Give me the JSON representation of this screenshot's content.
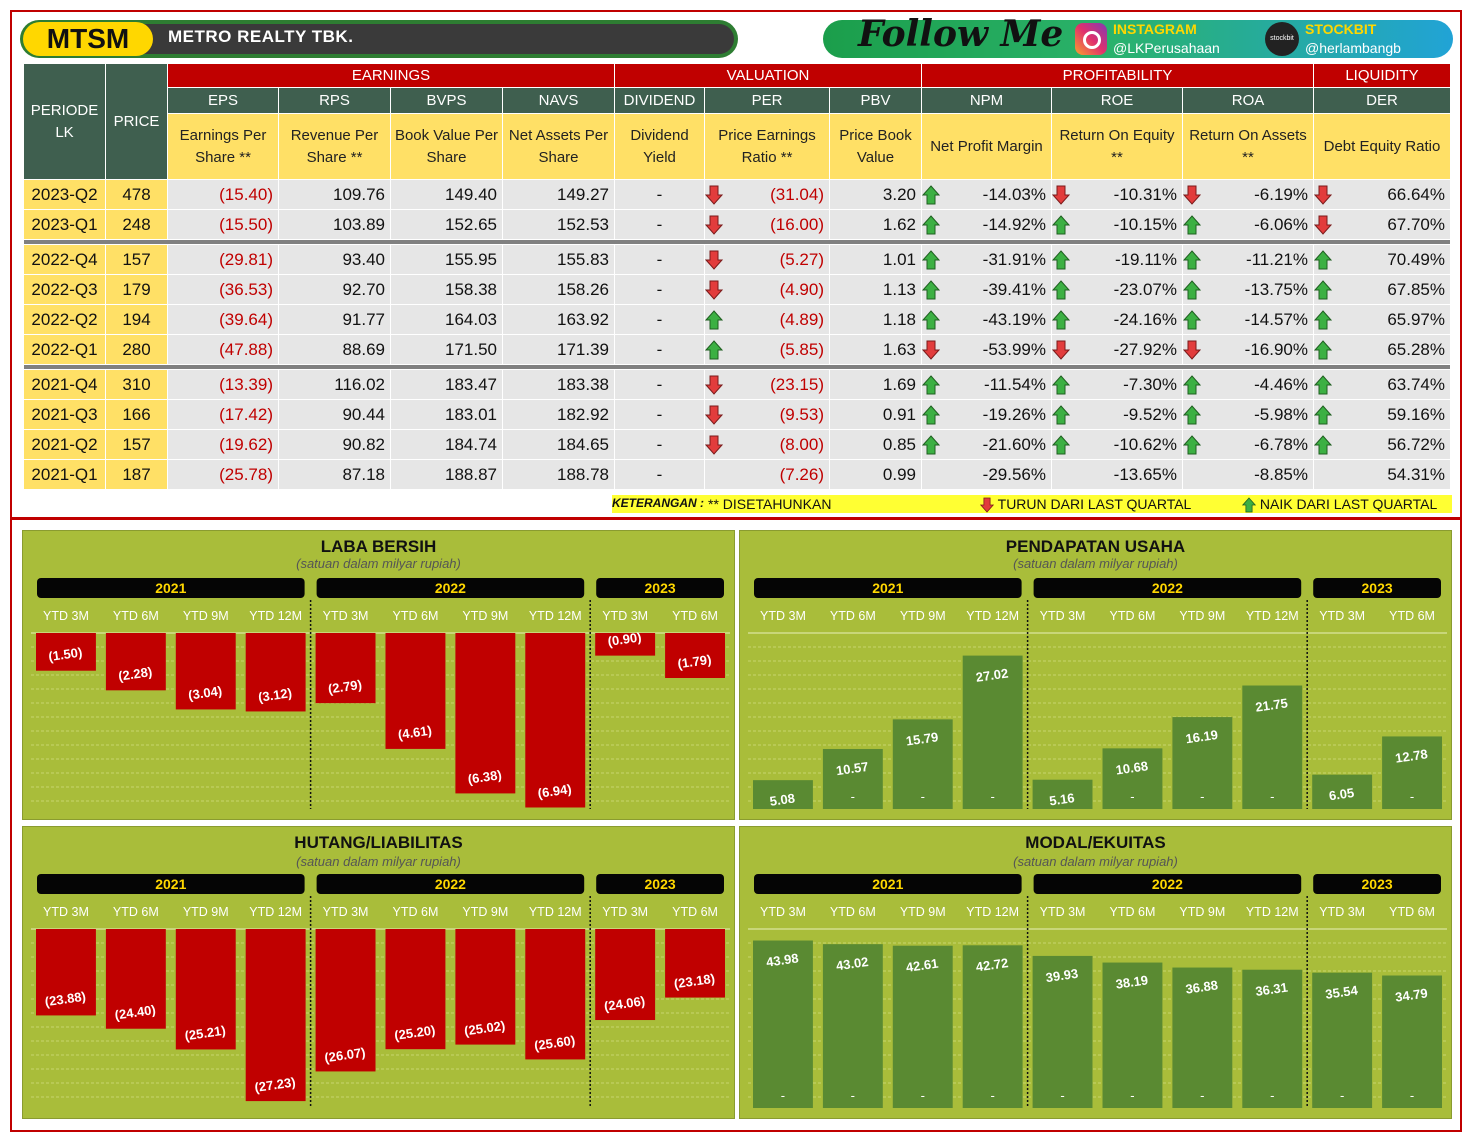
{
  "header": {
    "ticker": "MTSM",
    "company": "METRO  REALTY TBK.",
    "follow": "Follow Me",
    "instagram_label": "INSTAGRAM",
    "instagram_handle": "@LKPerusahaan",
    "stockbit_label": "STOCKBIT",
    "stockbit_handle": "@herlambangb",
    "stockbit_icon": "stockbit"
  },
  "table": {
    "periode_label": "PERIODE LK",
    "price_label": "PRICE",
    "groups": [
      "EARNINGS",
      "VALUATION",
      "PROFITABILITY",
      "LIQUIDITY"
    ],
    "codes": [
      "EPS",
      "RPS",
      "BVPS",
      "NAVS",
      "DIVIDEND",
      "PER",
      "PBV",
      "NPM",
      "ROE",
      "ROA",
      "DER"
    ],
    "descriptions": [
      "Earnings Per Share **",
      "Revenue Per Share **",
      "Book Value Per Share",
      "Net Assets Per Share",
      "Dividend Yield",
      "Price Earnings Ratio **",
      "Price Book Value",
      "Net Profit Margin",
      "Return On Equity **",
      "Return On Assets **",
      "Debt Equity Ratio"
    ],
    "rows": [
      {
        "period": "2023-Q2",
        "price": "478",
        "eps": "(15.40)",
        "rps": "109.76",
        "bvps": "149.40",
        "navs": "149.27",
        "div": "-",
        "per": "(31.04)",
        "per_a": "down",
        "pbv": "3.20",
        "npm": "-14.03%",
        "npm_a": "up",
        "roe": "-10.31%",
        "roe_a": "down",
        "roa": "-6.19%",
        "roa_a": "down",
        "der": "66.64%",
        "der_a": "down",
        "sep": false
      },
      {
        "period": "2023-Q1",
        "price": "248",
        "eps": "(15.50)",
        "rps": "103.89",
        "bvps": "152.65",
        "navs": "152.53",
        "div": "-",
        "per": "(16.00)",
        "per_a": "down",
        "pbv": "1.62",
        "npm": "-14.92%",
        "npm_a": "up",
        "roe": "-10.15%",
        "roe_a": "up",
        "roa": "-6.06%",
        "roa_a": "up",
        "der": "67.70%",
        "der_a": "down",
        "sep": true
      },
      {
        "period": "2022-Q4",
        "price": "157",
        "eps": "(29.81)",
        "rps": "93.40",
        "bvps": "155.95",
        "navs": "155.83",
        "div": "-",
        "per": "(5.27)",
        "per_a": "down",
        "pbv": "1.01",
        "npm": "-31.91%",
        "npm_a": "up",
        "roe": "-19.11%",
        "roe_a": "up",
        "roa": "-11.21%",
        "roa_a": "up",
        "der": "70.49%",
        "der_a": "up",
        "sep": false
      },
      {
        "period": "2022-Q3",
        "price": "179",
        "eps": "(36.53)",
        "rps": "92.70",
        "bvps": "158.38",
        "navs": "158.26",
        "div": "-",
        "per": "(4.90)",
        "per_a": "down",
        "pbv": "1.13",
        "npm": "-39.41%",
        "npm_a": "up",
        "roe": "-23.07%",
        "roe_a": "up",
        "roa": "-13.75%",
        "roa_a": "up",
        "der": "67.85%",
        "der_a": "up",
        "sep": false
      },
      {
        "period": "2022-Q2",
        "price": "194",
        "eps": "(39.64)",
        "rps": "91.77",
        "bvps": "164.03",
        "navs": "163.92",
        "div": "-",
        "per": "(4.89)",
        "per_a": "up",
        "pbv": "1.18",
        "npm": "-43.19%",
        "npm_a": "up",
        "roe": "-24.16%",
        "roe_a": "up",
        "roa": "-14.57%",
        "roa_a": "up",
        "der": "65.97%",
        "der_a": "up",
        "sep": false
      },
      {
        "period": "2022-Q1",
        "price": "280",
        "eps": "(47.88)",
        "rps": "88.69",
        "bvps": "171.50",
        "navs": "171.39",
        "div": "-",
        "per": "(5.85)",
        "per_a": "up",
        "pbv": "1.63",
        "npm": "-53.99%",
        "npm_a": "down",
        "roe": "-27.92%",
        "roe_a": "down",
        "roa": "-16.90%",
        "roa_a": "down",
        "der": "65.28%",
        "der_a": "up",
        "sep": true
      },
      {
        "period": "2021-Q4",
        "price": "310",
        "eps": "(13.39)",
        "rps": "116.02",
        "bvps": "183.47",
        "navs": "183.38",
        "div": "-",
        "per": "(23.15)",
        "per_a": "down",
        "pbv": "1.69",
        "npm": "-11.54%",
        "npm_a": "up",
        "roe": "-7.30%",
        "roe_a": "up",
        "roa": "-4.46%",
        "roa_a": "up",
        "der": "63.74%",
        "der_a": "up",
        "sep": false
      },
      {
        "period": "2021-Q3",
        "price": "166",
        "eps": "(17.42)",
        "rps": "90.44",
        "bvps": "183.01",
        "navs": "182.92",
        "div": "-",
        "per": "(9.53)",
        "per_a": "down",
        "pbv": "0.91",
        "npm": "-19.26%",
        "npm_a": "up",
        "roe": "-9.52%",
        "roe_a": "up",
        "roa": "-5.98%",
        "roa_a": "up",
        "der": "59.16%",
        "der_a": "up",
        "sep": false
      },
      {
        "period": "2021-Q2",
        "price": "157",
        "eps": "(19.62)",
        "rps": "90.82",
        "bvps": "184.74",
        "navs": "184.65",
        "div": "-",
        "per": "(8.00)",
        "per_a": "down",
        "pbv": "0.85",
        "npm": "-21.60%",
        "npm_a": "up",
        "roe": "-10.62%",
        "roe_a": "up",
        "roa": "-6.78%",
        "roa_a": "up",
        "der": "56.72%",
        "der_a": "up",
        "sep": false
      },
      {
        "period": "2021-Q1",
        "price": "187",
        "eps": "(25.78)",
        "rps": "87.18",
        "bvps": "188.87",
        "navs": "188.78",
        "div": "-",
        "per": "(7.26)",
        "per_a": "none",
        "pbv": "0.99",
        "npm": "-29.56%",
        "npm_a": "none",
        "roe": "-13.65%",
        "roe_a": "none",
        "roa": "-8.85%",
        "roa_a": "none",
        "der": "54.31%",
        "der_a": "none",
        "sep": false
      }
    ]
  },
  "legend": {
    "keterangan": "KETERANGAN :",
    "annualized": "** DISETAHUNKAN",
    "down": "TURUN DARI LAST QUARTAL",
    "up": "NAIK DARI LAST QUARTAL"
  },
  "colors": {
    "red": "#c00000",
    "green_bar": "#5a8a32",
    "panel": "#a9bd3a",
    "yellow": "#ffe066",
    "arrow_up": "#3cb043",
    "arrow_down": "#e23c3c"
  },
  "chart_data": [
    {
      "id": "laba",
      "type": "bar",
      "title": "LABA BERSIH",
      "subtitle": "(satuan dalam milyar rupiah)",
      "years": [
        "2021",
        "2022",
        "2023"
      ],
      "categories": [
        "YTD 3M",
        "YTD 6M",
        "YTD 9M",
        "YTD 12M",
        "YTD 3M",
        "YTD 6M",
        "YTD 9M",
        "YTD 12M",
        "YTD 3M",
        "YTD 6M"
      ],
      "values": [
        -1.5,
        -2.28,
        -3.04,
        -3.12,
        -2.79,
        -4.61,
        -6.38,
        -6.94,
        -0.9,
        -1.79
      ],
      "labels": [
        "(1.50)",
        "(2.28)",
        "(3.04)",
        "(3.12)",
        "(2.79)",
        "(4.61)",
        "(6.38)",
        "(6.94)",
        "(0.90)",
        "(1.79)"
      ],
      "bottom_labels": [
        "",
        "",
        "",
        "",
        "",
        "",
        "",
        "",
        "",
        ""
      ],
      "ylim": [
        -7.0,
        0
      ],
      "color": "#c00000"
    },
    {
      "id": "pendapatan",
      "type": "bar",
      "title": "PENDAPATAN  USAHA",
      "subtitle": "(satuan dalam milyar rupiah)",
      "years": [
        "2021",
        "2022",
        "2023"
      ],
      "categories": [
        "YTD 3M",
        "YTD 6M",
        "YTD 9M",
        "YTD 12M",
        "YTD 3M",
        "YTD 6M",
        "YTD 9M",
        "YTD 12M",
        "YTD 3M",
        "YTD 6M"
      ],
      "values": [
        5.08,
        10.57,
        15.79,
        27.02,
        5.16,
        10.68,
        16.19,
        21.75,
        6.05,
        12.78
      ],
      "labels": [
        "5.08",
        "10.57",
        "15.79",
        "27.02",
        "5.16",
        "10.68",
        "16.19",
        "21.75",
        "6.05",
        "12.78"
      ],
      "bottom_labels": [
        "",
        "-",
        "-",
        "-",
        "",
        "-",
        "-",
        "-",
        "",
        "-"
      ],
      "ylim": [
        0,
        31
      ],
      "color": "#5a8a32"
    },
    {
      "id": "hutang",
      "type": "bar",
      "title": "HUTANG/LIABILITAS",
      "subtitle": "(satuan dalam milyar rupiah)",
      "years": [
        "2021",
        "2022",
        "2023"
      ],
      "categories": [
        "YTD 3M",
        "YTD 6M",
        "YTD 9M",
        "YTD 12M",
        "YTD 3M",
        "YTD 6M",
        "YTD 9M",
        "YTD 12M",
        "YTD 3M",
        "YTD 6M"
      ],
      "values": [
        -23.88,
        -24.4,
        -25.21,
        -27.23,
        -26.07,
        -25.2,
        -25.02,
        -25.6,
        -24.06,
        -23.18
      ],
      "labels": [
        "(23.88)",
        "(24.40)",
        "(25.21)",
        "(27.23)",
        "(26.07)",
        "(25.20)",
        "(25.02)",
        "(25.60)",
        "(24.06)",
        "(23.18)"
      ],
      "bottom_labels": [
        "",
        "",
        "",
        "",
        "",
        "",
        "",
        "",
        "",
        ""
      ],
      "ylim": [
        -27.5,
        -20.5
      ],
      "color": "#c00000"
    },
    {
      "id": "modal",
      "type": "bar",
      "title": "MODAL/EKUITAS",
      "subtitle": "(satuan dalam milyar rupiah)",
      "years": [
        "2021",
        "2022",
        "2023"
      ],
      "categories": [
        "YTD 3M",
        "YTD 6M",
        "YTD 9M",
        "YTD 12M",
        "YTD 3M",
        "YTD 6M",
        "YTD 9M",
        "YTD 12M",
        "YTD 3M",
        "YTD 6M"
      ],
      "values": [
        43.98,
        43.02,
        42.61,
        42.72,
        39.93,
        38.19,
        36.88,
        36.31,
        35.54,
        34.79
      ],
      "labels": [
        "43.98",
        "43.02",
        "42.61",
        "42.72",
        "39.93",
        "38.19",
        "36.88",
        "36.31",
        "35.54",
        "34.79"
      ],
      "bottom_labels": [
        "-",
        "-",
        "-",
        "-",
        "-",
        "-",
        "-",
        "-",
        "-",
        "-"
      ],
      "ylim": [
        0,
        47
      ],
      "color": "#5a8a32"
    }
  ]
}
